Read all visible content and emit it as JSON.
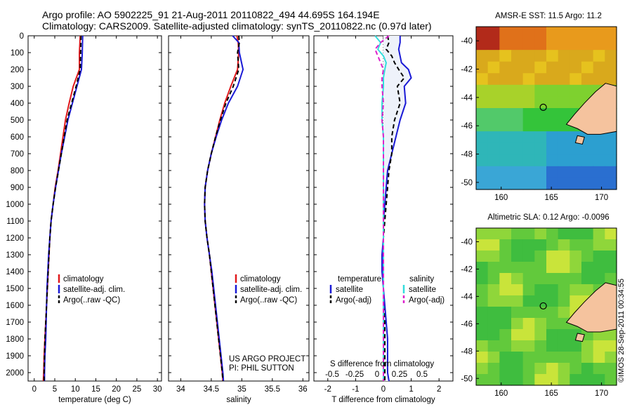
{
  "header": {
    "line1": "Argo profile: AO 5902225_91 21-Aug-2011 20110822_494 44.695S 164.194E",
    "line2": "Climatology: CARS2009. Satellite-adjusted climatology: synTS_20110822.nc (0.97d later)"
  },
  "colors": {
    "climatology": "#e0191c",
    "satellite": "#1a1ad6",
    "argo": "#000000",
    "cyan": "#33dddd",
    "magenta": "#dd22cc",
    "land": "#f5c39e"
  },
  "annotations": {
    "project_line1": "US ARGO PROJECT",
    "project_line2": "PI: PHIL SUTTON",
    "credit": "©IMOS 28-Sep-2011 00:34:55"
  },
  "maps": [
    {
      "title": "AMSR-E SST: 11.5 Argo: 11.2",
      "x_ticks": [
        "160",
        "165",
        "170"
      ],
      "y_ticks": [
        "-40",
        "-42",
        "-44",
        "-46",
        "-48",
        "-50"
      ],
      "marker_icon": "float-position-circle-icon"
    },
    {
      "title": "Altimetric SLA: 0.12 Argo: -0.0096",
      "x_ticks": [
        "160",
        "165",
        "170"
      ],
      "y_ticks": [
        "-40",
        "-42",
        "-44",
        "-46",
        "-48",
        "-50"
      ],
      "marker_icon": "float-position-circle-icon"
    }
  ],
  "chart_data": [
    {
      "type": "line",
      "xlabel": "temperature (deg C)",
      "ylabel": "",
      "xlim": [
        -1.5,
        31
      ],
      "ylim": [
        2050,
        0
      ],
      "x_ticks": [
        "0",
        "5",
        "10",
        "15",
        "20",
        "25",
        "30"
      ],
      "y_ticks": [
        "0",
        "100",
        "200",
        "300",
        "400",
        "500",
        "600",
        "700",
        "800",
        "900",
        "1000",
        "1100",
        "1200",
        "1300",
        "1400",
        "1500",
        "1600",
        "1700",
        "1800",
        "1900",
        "2000"
      ],
      "legend": [
        "climatology",
        "satellite-adj. clim.",
        "Argo(..raw -QC)"
      ],
      "legend_position": "lower-right",
      "depth": [
        0,
        100,
        200,
        300,
        400,
        500,
        600,
        700,
        800,
        900,
        1000,
        1100,
        1200,
        1300,
        1400,
        1500,
        1600,
        1700,
        1800,
        1900,
        2000,
        2050
      ],
      "series": [
        {
          "name": "climatology",
          "style": "solid",
          "color": "#e0191c",
          "values": [
            11.2,
            11.0,
            11.0,
            9.5,
            8.5,
            7.6,
            7.0,
            6.4,
            5.8,
            5.1,
            4.6,
            4.1,
            3.8,
            3.6,
            3.4,
            3.2,
            3.0,
            2.8,
            2.6,
            2.4,
            2.3,
            2.2
          ]
        },
        {
          "name": "satellite-adj. clim.",
          "style": "solid",
          "color": "#1a1ad6",
          "values": [
            11.8,
            11.7,
            11.5,
            10.4,
            9.3,
            8.2,
            7.4,
            6.6,
            5.9,
            5.2,
            4.6,
            4.1,
            3.8,
            3.5,
            3.3,
            3.1,
            3.0,
            2.9,
            2.8,
            2.6,
            2.5,
            2.5
          ]
        },
        {
          "name": "Argo(..raw -QC)",
          "style": "dashed",
          "color": "#000000",
          "values": [
            11.4,
            11.3,
            11.2,
            10.2,
            9.1,
            8.0,
            7.3,
            6.6,
            5.9,
            5.2,
            4.6,
            4.1,
            3.8,
            3.6,
            3.4,
            3.2,
            3.0,
            2.8,
            2.6,
            2.5,
            2.4,
            2.4
          ]
        }
      ]
    },
    {
      "type": "line",
      "xlabel": "salinity",
      "ylabel": "",
      "xlim": [
        33.8,
        36.1
      ],
      "ylim": [
        2050,
        0
      ],
      "x_ticks": [
        "34",
        "34.5",
        "35",
        "35.5",
        "36"
      ],
      "legend": [
        "climatology",
        "satellite-adj. clim.",
        "Argo(..raw -QC)"
      ],
      "legend_position": "lower-right",
      "depth": [
        0,
        40,
        100,
        200,
        300,
        400,
        500,
        600,
        700,
        800,
        900,
        1000,
        1100,
        1200,
        1300,
        1400,
        1500,
        1600,
        1700,
        1800,
        1900,
        2000,
        2050
      ],
      "series": [
        {
          "name": "climatology",
          "style": "solid",
          "color": "#e0191c",
          "values": [
            34.92,
            34.94,
            34.95,
            34.93,
            34.82,
            34.72,
            34.64,
            34.57,
            34.5,
            34.44,
            34.4,
            34.39,
            34.4,
            34.43,
            34.47,
            34.5,
            34.53,
            34.56,
            34.59,
            34.62,
            34.65,
            34.68,
            34.69
          ]
        },
        {
          "name": "satellite-adj. clim.",
          "style": "solid",
          "color": "#1a1ad6",
          "values": [
            34.85,
            34.95,
            34.96,
            35.02,
            34.93,
            34.78,
            34.67,
            34.58,
            34.5,
            34.44,
            34.4,
            34.39,
            34.4,
            34.43,
            34.47,
            34.51,
            34.54,
            34.57,
            34.6,
            34.63,
            34.66,
            34.69,
            34.7
          ]
        },
        {
          "name": "Argo(..raw -QC)",
          "style": "dashed",
          "color": "#000000",
          "values": [
            34.95,
            34.96,
            34.93,
            34.95,
            34.86,
            34.74,
            34.65,
            34.57,
            34.5,
            34.44,
            34.4,
            34.39,
            34.4,
            34.43,
            34.47,
            34.5,
            34.53,
            34.56,
            34.59,
            34.62,
            34.65,
            34.68,
            34.69
          ]
        }
      ]
    },
    {
      "type": "line",
      "xlabel": "T difference from climatology",
      "xlabel2": "S difference from climatology",
      "ylabel": "",
      "xlim": [
        -2.5,
        2.5
      ],
      "ylim": [
        2050,
        0
      ],
      "x_ticks": [
        "-2",
        "-1",
        "0",
        "1",
        "2"
      ],
      "x_ticks_salinity": [
        "-0.5",
        "-0.25",
        "0",
        "0.25",
        "0.5"
      ],
      "legend_headers": [
        "temperature",
        "salinity"
      ],
      "legend": [
        "satellite",
        "Argo(-adj)",
        "satellite",
        "Argo(-adj)"
      ],
      "legend_position": "lower-center",
      "depth": [
        0,
        40,
        80,
        120,
        160,
        200,
        250,
        300,
        400,
        500,
        600,
        700,
        800,
        900,
        1000,
        1100,
        1200,
        1300,
        1400,
        1500,
        1600,
        1700,
        1800,
        1900,
        2000,
        2050
      ],
      "series": [
        {
          "name": "temperature satellite",
          "style": "solid",
          "color": "#1a1ad6",
          "values": [
            0.6,
            0.6,
            0.55,
            0.6,
            0.65,
            0.9,
            1.0,
            0.75,
            0.8,
            0.6,
            0.45,
            0.3,
            0.15,
            0.1,
            0.05,
            0.0,
            0.0,
            -0.05,
            -0.05,
            0.0,
            0.05,
            0.1,
            0.15,
            0.15,
            0.15,
            0.2
          ]
        },
        {
          "name": "temperature Argo(-adj)",
          "style": "dashed",
          "color": "#000000",
          "values": [
            0.15,
            0.2,
            0.1,
            0.3,
            0.4,
            0.55,
            0.75,
            0.5,
            0.6,
            0.4,
            0.3,
            0.3,
            0.2,
            0.15,
            0.1,
            0.05,
            0.0,
            0.0,
            0.0,
            0.0,
            0.0,
            0.05,
            0.05,
            0.05,
            0.05,
            0.05
          ]
        },
        {
          "name": "salinity satellite",
          "style": "solid",
          "color": "#33dddd",
          "values": [
            -0.3,
            -0.1,
            -0.2,
            0.0,
            0.1,
            0.05,
            0.0,
            0.0,
            -0.05,
            -0.05,
            0.0,
            0.0,
            0.0,
            0.0,
            0.0,
            0.0,
            0.0,
            0.0,
            0.0,
            0.0,
            0.0,
            0.0,
            0.0,
            0.0,
            0.0,
            0.0
          ]
        },
        {
          "name": "salinity Argo(-adj)",
          "style": "dashed",
          "color": "#dd22cc",
          "values": [
            0.2,
            -0.1,
            -0.3,
            -0.2,
            -0.1,
            0.0,
            -0.05,
            -0.05,
            0.0,
            -0.05,
            0.0,
            0.0,
            0.0,
            0.0,
            0.0,
            0.0,
            0.0,
            0.0,
            0.0,
            0.0,
            0.0,
            0.0,
            0.0,
            0.0,
            0.0,
            0.0
          ]
        }
      ]
    }
  ]
}
